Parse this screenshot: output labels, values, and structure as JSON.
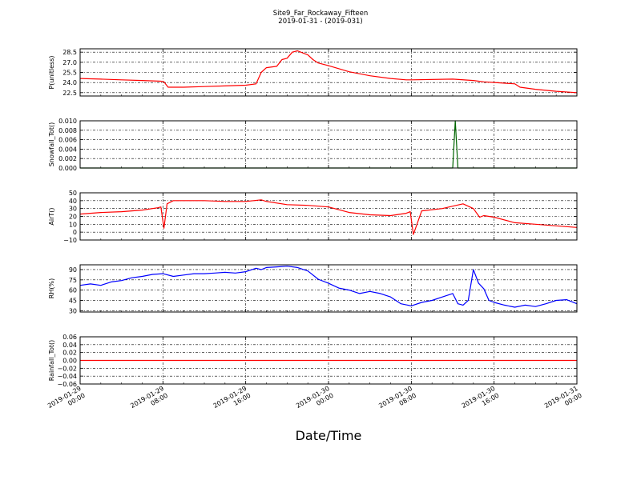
{
  "figure": {
    "title_line1": "Site9_Far_Rockaway_Fifteen",
    "title_line2": "2019-01-31 - (2019-031)",
    "xlabel": "Date/Time",
    "x_ticks": [
      {
        "line1": "2019-01-29",
        "line2": "00:00"
      },
      {
        "line1": "2019-01-29",
        "line2": "08:00"
      },
      {
        "line1": "2019-01-29",
        "line2": "16:00"
      },
      {
        "line1": "2019-01-30",
        "line2": "00:00"
      },
      {
        "line1": "2019-01-30",
        "line2": "08:00"
      },
      {
        "line1": "2019-01-30",
        "line2": "16:00"
      },
      {
        "line1": "2019-01-31",
        "line2": "00:00"
      }
    ]
  },
  "chart_data": [
    {
      "type": "line",
      "ylabel": "P(unitless)",
      "ylim": [
        22.0,
        29.0
      ],
      "yticks": [
        "22.5",
        "24.0",
        "25.5",
        "27.0",
        "28.5"
      ],
      "ytick_values": [
        22.5,
        24.0,
        25.5,
        27.0,
        28.5
      ],
      "xlim_hours": [
        0,
        48
      ],
      "grid": true,
      "series": [
        {
          "color": "#ff0000",
          "x": [
            0,
            2,
            4,
            6,
            7.8,
            8.1,
            8.5,
            10,
            12,
            14,
            16,
            17,
            17.5,
            18,
            19,
            19.5,
            20,
            20.5,
            21,
            21.5,
            22,
            22.5,
            23,
            24,
            26,
            28,
            30,
            31.5,
            32,
            36,
            38,
            39,
            40,
            42,
            42.5,
            44,
            46,
            48
          ],
          "y": [
            24.6,
            24.5,
            24.4,
            24.3,
            24.2,
            24.1,
            23.3,
            23.3,
            23.4,
            23.5,
            23.6,
            23.8,
            25.5,
            26.2,
            26.4,
            27.4,
            27.6,
            28.5,
            28.7,
            28.4,
            28.1,
            27.4,
            26.9,
            26.5,
            25.6,
            25.0,
            24.6,
            24.4,
            24.4,
            24.5,
            24.3,
            24.1,
            24.0,
            23.8,
            23.3,
            23.0,
            22.7,
            22.5
          ]
        }
      ]
    },
    {
      "type": "line",
      "ylabel": "Snowfall_Tot()",
      "ylim": [
        0,
        0.01
      ],
      "yticks": [
        "0.000",
        "0.002",
        "0.004",
        "0.006",
        "0.008",
        "0.010"
      ],
      "ytick_values": [
        0,
        0.002,
        0.004,
        0.006,
        0.008,
        0.01
      ],
      "xlim_hours": [
        0,
        48
      ],
      "grid": true,
      "series": [
        {
          "color": "#006400",
          "x": [
            0,
            36,
            36.25,
            36.5,
            48
          ],
          "y": [
            0,
            0,
            0.01,
            0,
            0
          ]
        }
      ]
    },
    {
      "type": "line",
      "ylabel": "AirT()",
      "ylim": [
        -10,
        50
      ],
      "yticks": [
        "−10",
        "0",
        "10",
        "20",
        "30",
        "40",
        "50"
      ],
      "ytick_values": [
        -10,
        0,
        10,
        20,
        30,
        40,
        50
      ],
      "xlim_hours": [
        0,
        48
      ],
      "grid": true,
      "series": [
        {
          "color": "#ff0000",
          "x": [
            0,
            2,
            4,
            6,
            7.5,
            7.8,
            8.1,
            8.4,
            9,
            10,
            12,
            14,
            16,
            17.5,
            18,
            20,
            22,
            24,
            26,
            28,
            30,
            31.5,
            31.9,
            32.2,
            33,
            35,
            36,
            37,
            38,
            38.6,
            39,
            40,
            42,
            44,
            46,
            48
          ],
          "y": [
            23,
            25,
            26,
            28,
            31,
            32,
            5,
            36,
            40,
            40,
            40,
            39,
            39,
            41,
            39,
            35,
            34,
            32,
            25,
            22,
            21,
            24,
            26,
            -3,
            27,
            30,
            33,
            36,
            30,
            19,
            21,
            19,
            12,
            10,
            8,
            6
          ]
        }
      ]
    },
    {
      "type": "line",
      "ylabel": "RH(%)",
      "ylim": [
        28,
        97
      ],
      "yticks": [
        "30",
        "45",
        "60",
        "75",
        "90"
      ],
      "ytick_values": [
        30,
        45,
        60,
        75,
        90
      ],
      "xlim_hours": [
        0,
        48
      ],
      "grid": true,
      "series": [
        {
          "color": "#0000ff",
          "x": [
            0,
            1,
            2,
            3,
            4,
            5,
            6,
            7,
            8,
            9,
            10,
            11,
            12,
            13,
            14,
            15,
            16,
            17,
            17.5,
            18,
            19,
            20,
            21,
            22,
            23,
            24,
            25,
            26,
            27,
            28,
            29,
            30,
            31,
            32,
            33,
            34,
            35,
            36,
            36.5,
            37,
            37.5,
            38,
            38.5,
            39,
            39.5,
            40,
            41,
            42,
            43,
            44,
            45,
            46,
            47,
            48
          ],
          "y": [
            67,
            69,
            67,
            72,
            74,
            78,
            80,
            83,
            84,
            80,
            82,
            84,
            84,
            85,
            86,
            85,
            87,
            92,
            90,
            93,
            94,
            95,
            93,
            88,
            76,
            70,
            63,
            60,
            55,
            58,
            55,
            50,
            40,
            37,
            42,
            45,
            50,
            55,
            40,
            38,
            45,
            90,
            70,
            62,
            45,
            42,
            38,
            35,
            38,
            36,
            40,
            45,
            46,
            40
          ]
        }
      ]
    },
    {
      "type": "line",
      "ylabel": "Rainfall_Tot()",
      "ylim": [
        -0.06,
        0.06
      ],
      "yticks": [
        "−0.06",
        "−0.04",
        "−0.02",
        "0.00",
        "0.02",
        "0.04",
        "0.06"
      ],
      "ytick_values": [
        -0.06,
        -0.04,
        -0.02,
        0,
        0.02,
        0.04,
        0.06
      ],
      "xlim_hours": [
        0,
        48
      ],
      "grid": true,
      "series": [
        {
          "color": "#ff0000",
          "x": [
            0,
            48
          ],
          "y": [
            0,
            0
          ]
        }
      ]
    }
  ]
}
